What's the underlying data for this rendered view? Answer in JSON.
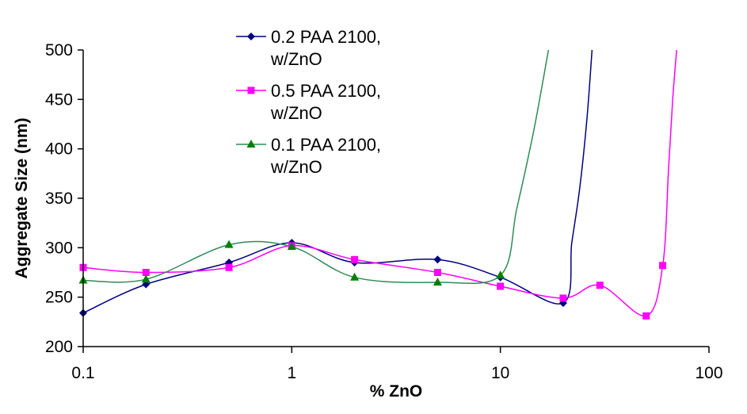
{
  "chart_data": {
    "type": "scatter",
    "xlabel": "% ZnO",
    "ylabel": "Aggregate Size (nm)",
    "xscale": "log",
    "xlim": [
      0.1,
      100
    ],
    "ylim": [
      200,
      500
    ],
    "x_ticks": [
      0.1,
      1,
      10,
      100
    ],
    "x_tick_labels": [
      "0.1",
      "1",
      "10",
      "100"
    ],
    "y_ticks": [
      200,
      250,
      300,
      350,
      400,
      450,
      500
    ],
    "y_tick_labels": [
      "200",
      "250",
      "300",
      "350",
      "400",
      "450",
      "500"
    ],
    "grid": false,
    "legend_position": "top-center",
    "series": [
      {
        "name_lines": [
          "0.2 PAA 2100,",
          "w/ZnO"
        ],
        "color": "#000080",
        "marker": "diamond",
        "x": [
          0.1,
          0.2,
          0.5,
          1,
          2,
          5,
          10,
          20
        ],
        "y": [
          234,
          263,
          285,
          305,
          285,
          288,
          270,
          244
        ],
        "curve_extra": [
          [
            22,
            305
          ],
          [
            24,
            360
          ],
          [
            26,
            430
          ],
          [
            27.5,
            500
          ]
        ]
      },
      {
        "name_lines": [
          "0.5 PAA 2100,",
          "w/ZnO"
        ],
        "color": "#ff00ff",
        "marker": "square",
        "x": [
          0.1,
          0.2,
          0.5,
          1,
          2,
          5,
          10,
          20,
          30,
          50,
          60
        ],
        "y": [
          280,
          275,
          280,
          302,
          288,
          275,
          261,
          249,
          262,
          231,
          282
        ],
        "curve_extra": [
          [
            64,
            380
          ],
          [
            67,
            450
          ],
          [
            70,
            500
          ]
        ]
      },
      {
        "name_lines": [
          "0.1 PAA 2100,",
          "w/ZnO"
        ],
        "color": "#008000",
        "line_color": "#2e8b57",
        "marker": "triangle",
        "x": [
          0.1,
          0.2,
          0.5,
          1,
          2,
          5,
          10
        ],
        "y": [
          267,
          268,
          303,
          301,
          270,
          265,
          272
        ],
        "curve_extra": [
          [
            12,
            340
          ],
          [
            14.5,
            420
          ],
          [
            17,
            500
          ]
        ]
      }
    ]
  }
}
